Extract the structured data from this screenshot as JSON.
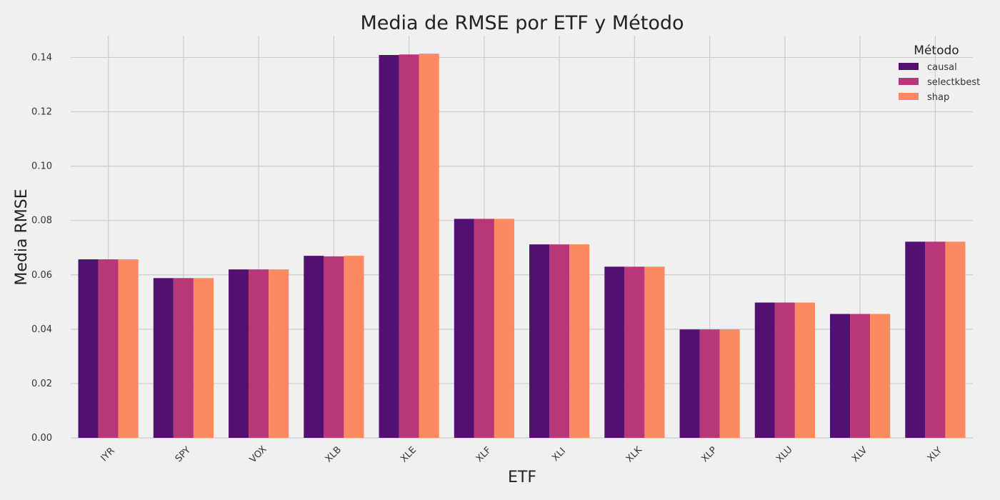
{
  "chart_data": {
    "type": "bar",
    "title": "Media de RMSE por ETF y Método",
    "xlabel": "ETF",
    "ylabel": "Media RMSE",
    "categories": [
      "IYR",
      "SPY",
      "VOX",
      "XLB",
      "XLE",
      "XLF",
      "XLI",
      "XLK",
      "XLP",
      "XLU",
      "XLV",
      "XLY"
    ],
    "series": [
      {
        "name": "causal",
        "color": "#521070",
        "values": [
          0.0657,
          0.0588,
          0.062,
          0.067,
          0.1409,
          0.0806,
          0.0712,
          0.063,
          0.0399,
          0.0498,
          0.0456,
          0.0722
        ]
      },
      {
        "name": "selectkbest",
        "color": "#b73779",
        "values": [
          0.0657,
          0.0588,
          0.062,
          0.0668,
          0.1411,
          0.0806,
          0.0712,
          0.063,
          0.0399,
          0.0498,
          0.0456,
          0.0722
        ]
      },
      {
        "name": "shap",
        "color": "#fc8961",
        "values": [
          0.0657,
          0.0588,
          0.062,
          0.067,
          0.1414,
          0.0806,
          0.0712,
          0.063,
          0.0399,
          0.0498,
          0.0456,
          0.0722
        ]
      }
    ],
    "ylim": [
      0,
      0.148
    ],
    "yticks": [
      "0.00",
      "0.02",
      "0.04",
      "0.06",
      "0.08",
      "0.10",
      "0.12",
      "0.14"
    ],
    "grid": true,
    "legend": {
      "title": "Método",
      "position": "top-right"
    }
  }
}
